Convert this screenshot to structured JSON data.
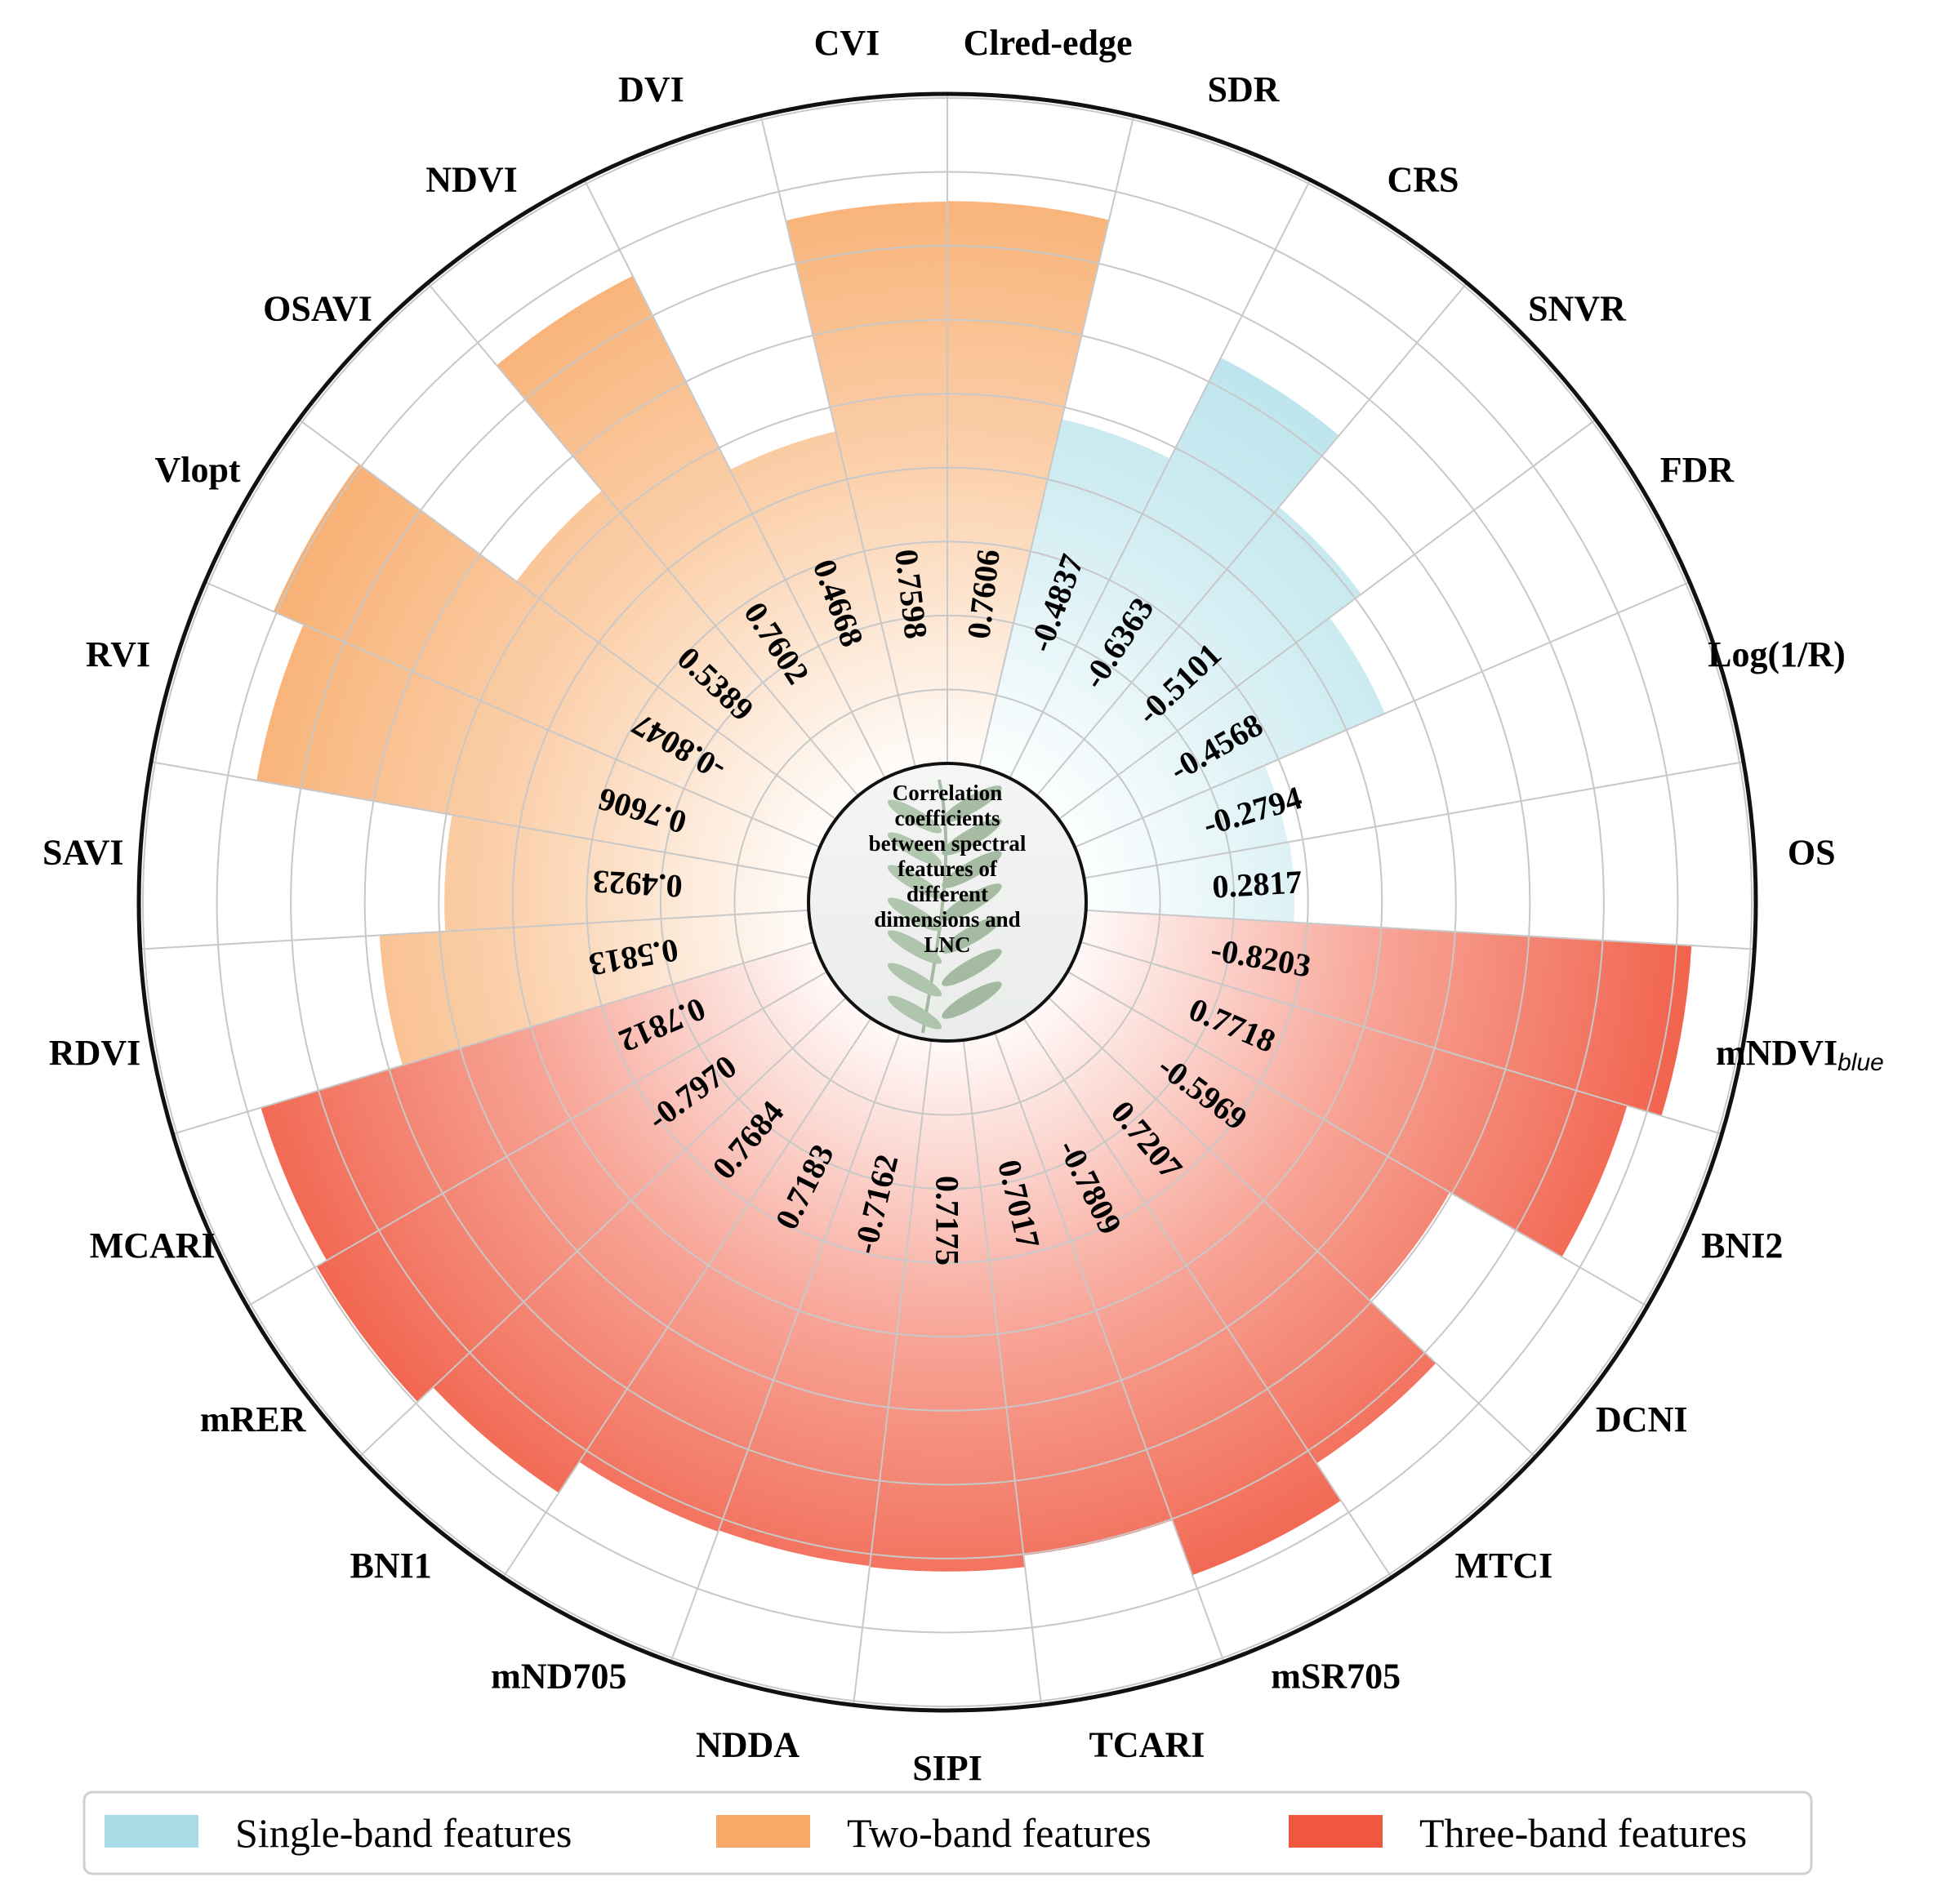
{
  "chart_data": {
    "type": "radial-bar",
    "title": "Correlation coefficients between spectral features of different dimensions and LNC",
    "title_lines": [
      "Correlation",
      "coefficients",
      "between spectral",
      "features of",
      "different",
      "dimensions and",
      "LNC"
    ],
    "value_label": "Correlation coefficient",
    "bar_metric": "absolute value of the correlation coefficient",
    "rlim": [
      0,
      0.9
    ],
    "grid": true,
    "legend_position": "bottom",
    "groups": [
      {
        "key": "single",
        "name": "Single-band features",
        "color": "#a8dce7"
      },
      {
        "key": "two",
        "name": "Two-band features",
        "color": "#f7a967"
      },
      {
        "key": "three",
        "name": "Three-band features",
        "color": "#f0573f"
      }
    ],
    "categories": [
      {
        "label": "Clred-edge",
        "group": "two",
        "value": 0.7606
      },
      {
        "label": "SDR",
        "group": "single",
        "value": -0.4837
      },
      {
        "label": "CRS",
        "group": "single",
        "value": -0.6363
      },
      {
        "label": "SNVR",
        "group": "single",
        "value": -0.5101
      },
      {
        "label": "FDR",
        "group": "single",
        "value": -0.4568
      },
      {
        "label": "Log(1/R)",
        "group": "single",
        "value": -0.2794
      },
      {
        "label": "OS",
        "group": "single",
        "value": 0.2817
      },
      {
        "label": "mNDVI",
        "label_sub": "blue",
        "group": "three",
        "value": -0.8203
      },
      {
        "label": "BNI2",
        "group": "three",
        "value": 0.7718
      },
      {
        "label": "DCNI",
        "group": "three",
        "value": -0.5969
      },
      {
        "label": "MTCI",
        "group": "three",
        "value": 0.7207
      },
      {
        "label": "mSR705",
        "group": "three",
        "value": -0.7809
      },
      {
        "label": "TCARI",
        "group": "three",
        "value": 0.7017
      },
      {
        "label": "SIPI",
        "group": "three",
        "value": 0.7175
      },
      {
        "label": "NDDA",
        "group": "three",
        "value": -0.7162
      },
      {
        "label": "mND705",
        "group": "three",
        "value": 0.7183
      },
      {
        "label": "BNI1",
        "group": "three",
        "value": 0.7684
      },
      {
        "label": "mRER",
        "group": "three",
        "value": -0.797
      },
      {
        "label": "MCARI",
        "group": "three",
        "value": 0.7812
      },
      {
        "label": "RDVI",
        "group": "two",
        "value": 0.5813
      },
      {
        "label": "SAVI",
        "group": "two",
        "value": 0.4923
      },
      {
        "label": "RVI",
        "group": "two",
        "value": 0.7606
      },
      {
        "label": "Vlopt",
        "group": "two",
        "value": -0.8047
      },
      {
        "label": "OSAVI",
        "group": "two",
        "value": 0.5389
      },
      {
        "label": "NDVI",
        "group": "two",
        "value": 0.7602
      },
      {
        "label": "DVI",
        "group": "two",
        "value": 0.4668
      },
      {
        "label": "CVI",
        "group": "two",
        "value": 0.7598
      }
    ],
    "value_text": [
      "0.7606",
      "-0.4837",
      "-0.6363",
      "-0.5101",
      "-0.4568",
      "-0.2794",
      "0.2817",
      "-0.8203",
      "0.7718",
      "-0.5969",
      "0.7207",
      "-0.7809",
      "0.7017",
      "0.7175",
      "-0.7162",
      "0.7183",
      "0.7684",
      "-0.7970",
      "0.7812",
      "0.5813",
      "0.4923",
      "0.7606",
      "-0.8047",
      "0.5389",
      "0.7602",
      "0.4668",
      "0.7598"
    ]
  }
}
